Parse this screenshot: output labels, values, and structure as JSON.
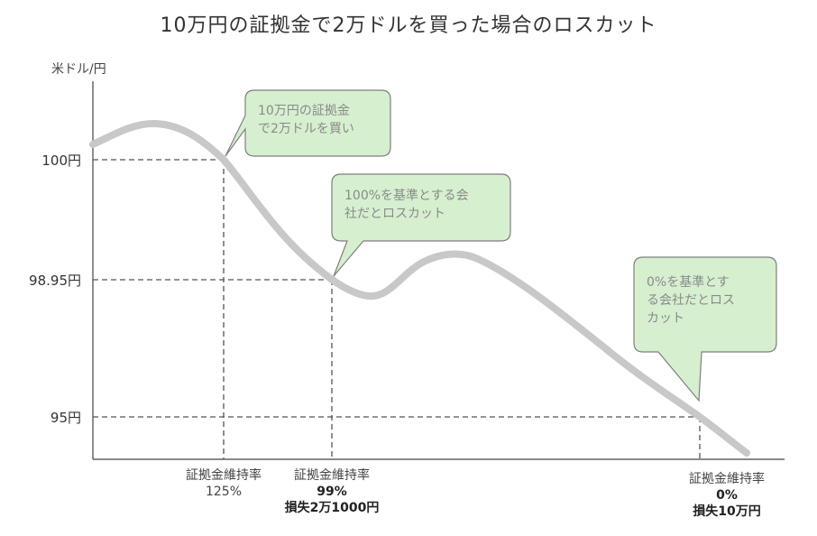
{
  "title": "10万円の証拠金で2万ドルを買った場合のロスカット",
  "y_axis_unit": "米ドル/円",
  "y_ticks": [
    "100円",
    "98.95円",
    "95円"
  ],
  "markers": [
    {
      "line1": "証拠金維持率",
      "line2": "125%",
      "line3": ""
    },
    {
      "line1": "証拠金維持率",
      "line2": "99%",
      "line3": "損失2万1000円"
    },
    {
      "line1": "証拠金維持率",
      "line2": "0%",
      "line3": "損失10万円"
    }
  ],
  "callouts": [
    {
      "line1": "10万円の証拠金",
      "line2": "で2万ドルを買い",
      "line3": ""
    },
    {
      "line1": "100%を基準とする会",
      "line2": "社だとロスカット",
      "line3": ""
    },
    {
      "line1": "0%を基準とす",
      "line2": "る会社だとロス",
      "line3": "カット"
    }
  ],
  "colors": {
    "curve": "#c8c8c8",
    "bubble_fill": "#d6efcf",
    "bubble_stroke": "#7f7f7f",
    "dashed": "#555555",
    "axis": "#444444"
  }
}
